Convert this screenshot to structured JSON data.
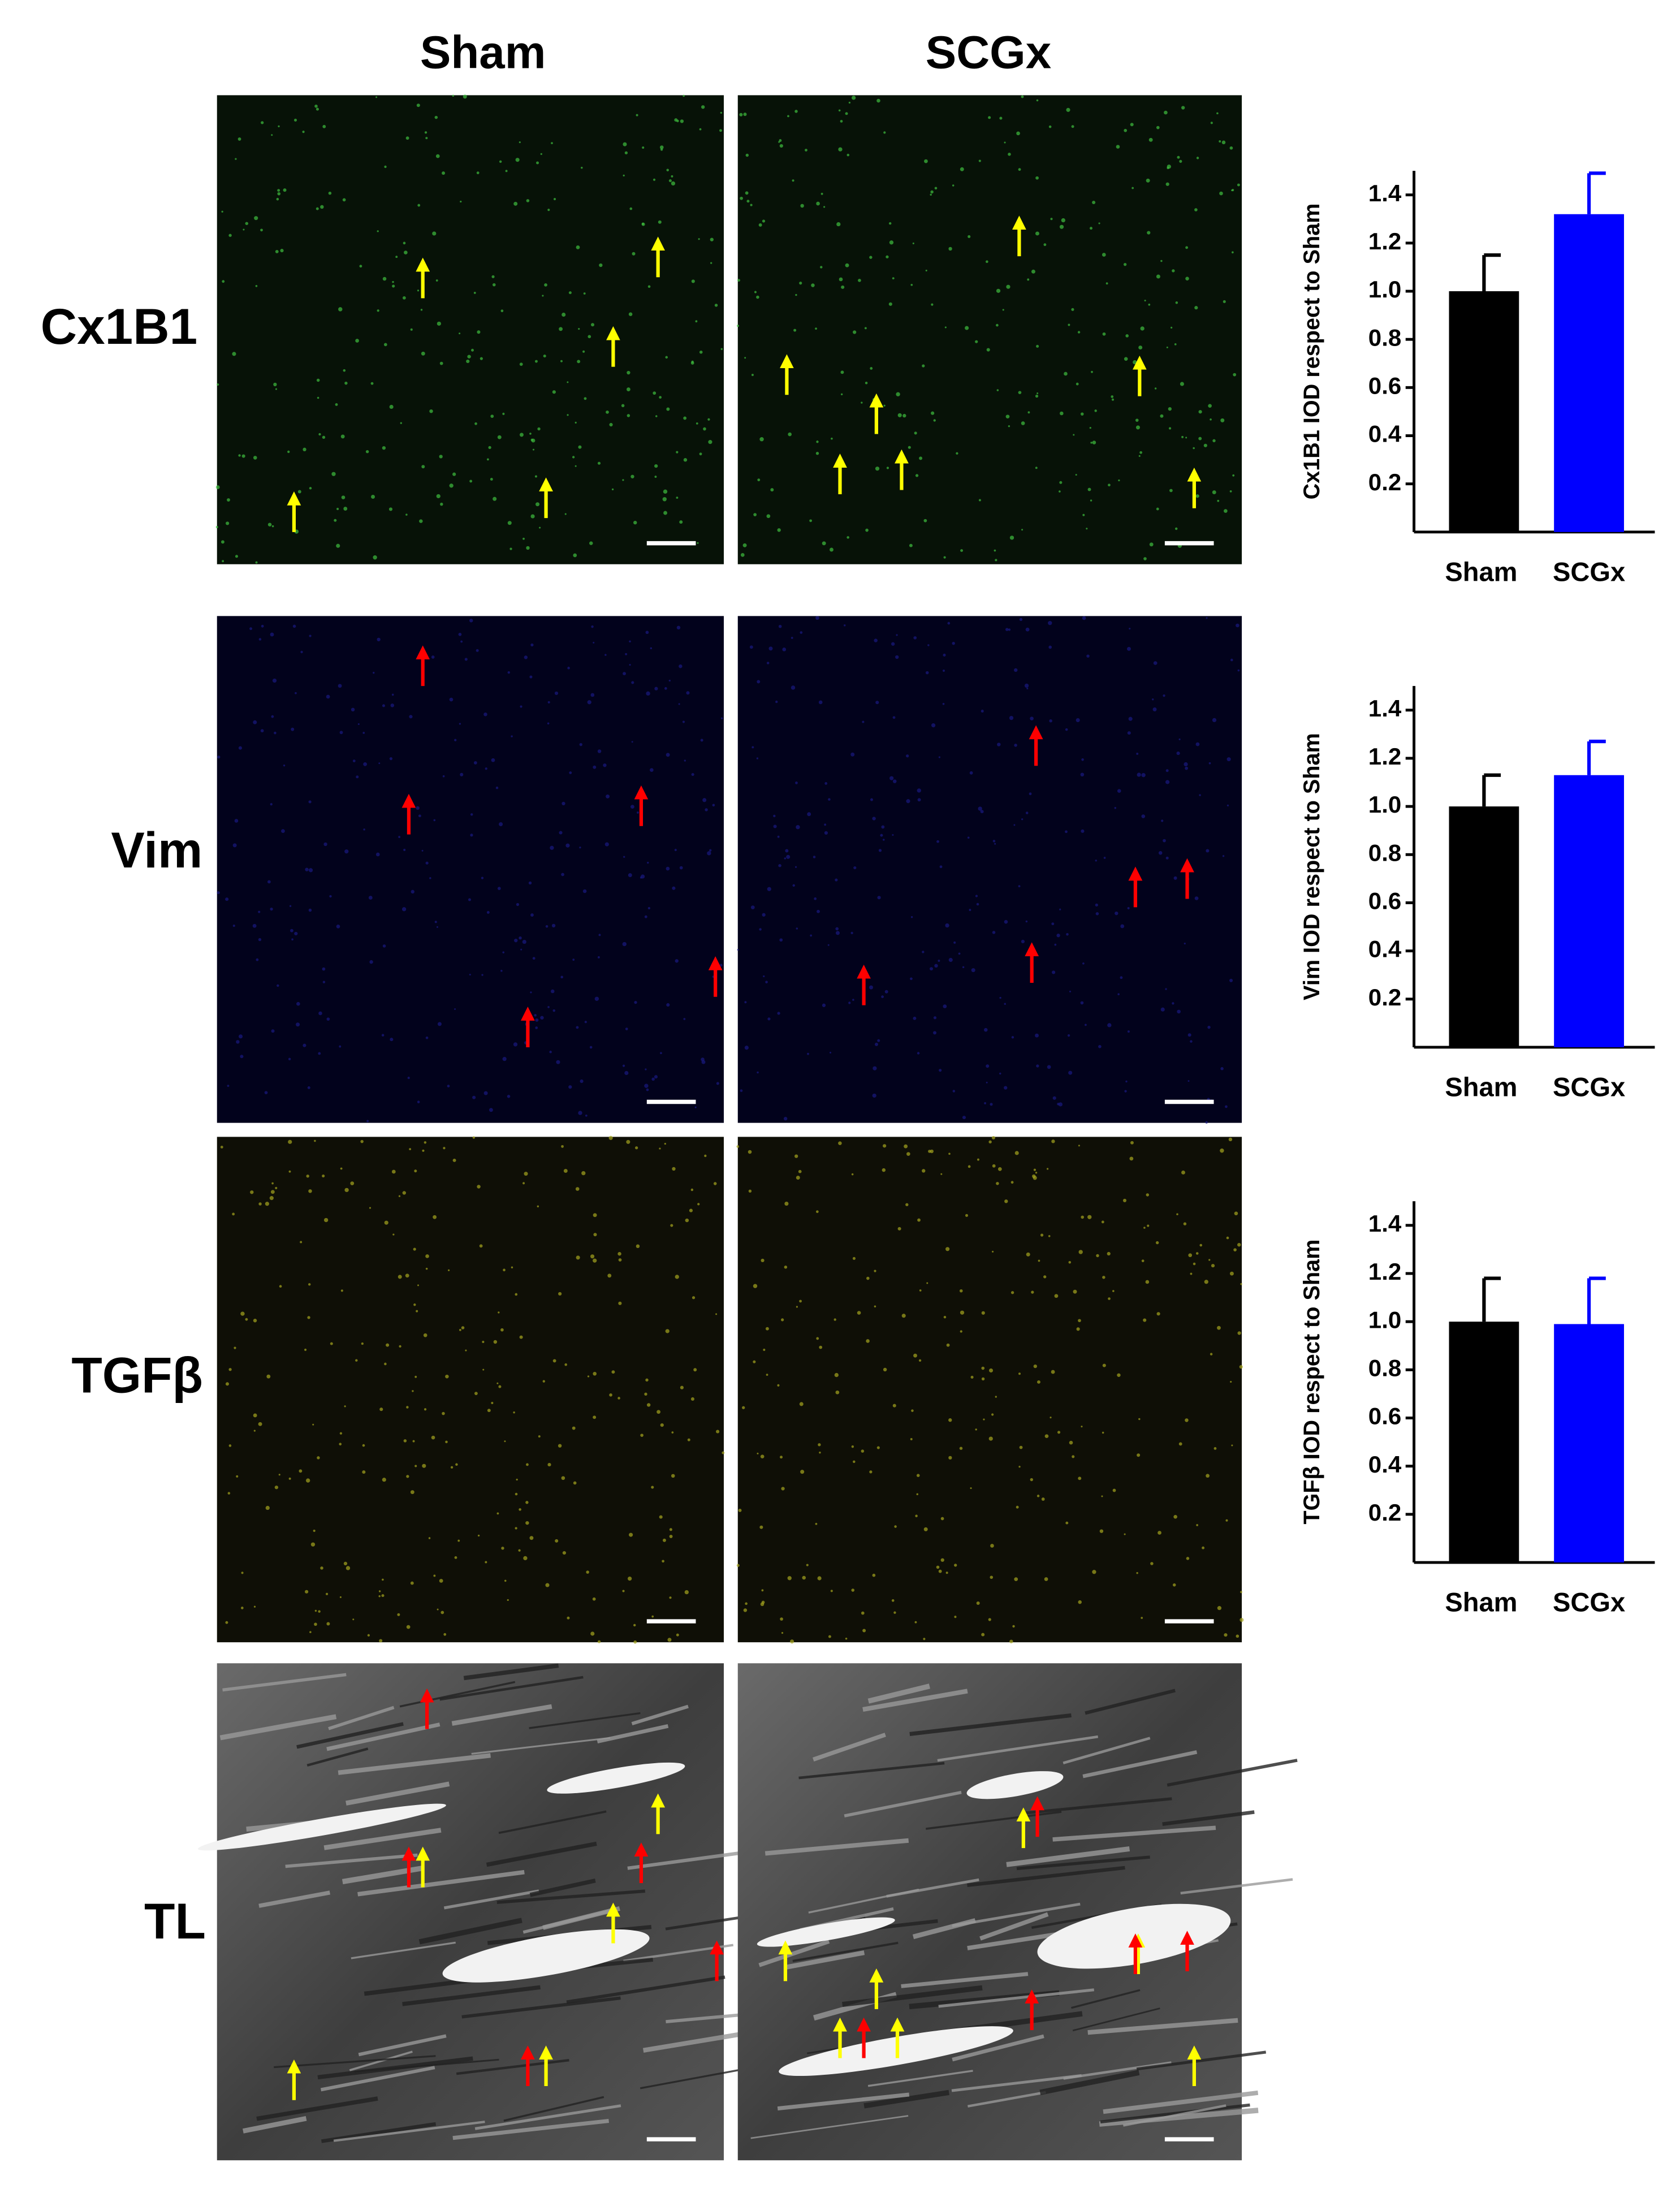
{
  "panel": {
    "columns": [
      "Sham",
      "SCGx"
    ],
    "rows": [
      "Cx1B1",
      "Vim",
      "TGFβ",
      "TL"
    ]
  },
  "chart_data": [
    {
      "type": "bar",
      "ylabel": "Cx1B1 IOD respect to Sham",
      "categories": [
        "Sham",
        "SCGx"
      ],
      "values": [
        1.0,
        1.32
      ],
      "errors": [
        0.15,
        0.17
      ],
      "colors": [
        "#000000",
        "#0000ff"
      ],
      "ylim": [
        0,
        1.5
      ],
      "yticks": [
        0.2,
        0.4,
        0.6,
        0.8,
        {
          "value": 1.0,
          "label": "1.0"
        },
        1.2,
        1.4
      ]
    },
    {
      "type": "bar",
      "ylabel": "Vim IOD respect to Sham",
      "categories": [
        "Sham",
        "SCGx"
      ],
      "values": [
        1.0,
        1.13
      ],
      "errors": [
        0.13,
        0.14
      ],
      "colors": [
        "#000000",
        "#0000ff"
      ],
      "ylim": [
        0,
        1.5
      ],
      "yticks": [
        0.2,
        0.4,
        0.6,
        0.8,
        {
          "value": 1.0,
          "label": "1.0"
        },
        1.2,
        1.4
      ]
    },
    {
      "type": "bar",
      "ylabel": "TGFβ IOD respect to Sham",
      "categories": [
        "Sham",
        "SCGx"
      ],
      "values": [
        1.0,
        0.99
      ],
      "errors": [
        0.18,
        0.19
      ],
      "colors": [
        "#000000",
        "#0000ff"
      ],
      "ylim": [
        0,
        1.5
      ],
      "yticks": [
        0.2,
        0.4,
        0.6,
        0.8,
        {
          "value": 1.0,
          "label": "1.0"
        },
        1.2,
        1.4
      ]
    }
  ]
}
